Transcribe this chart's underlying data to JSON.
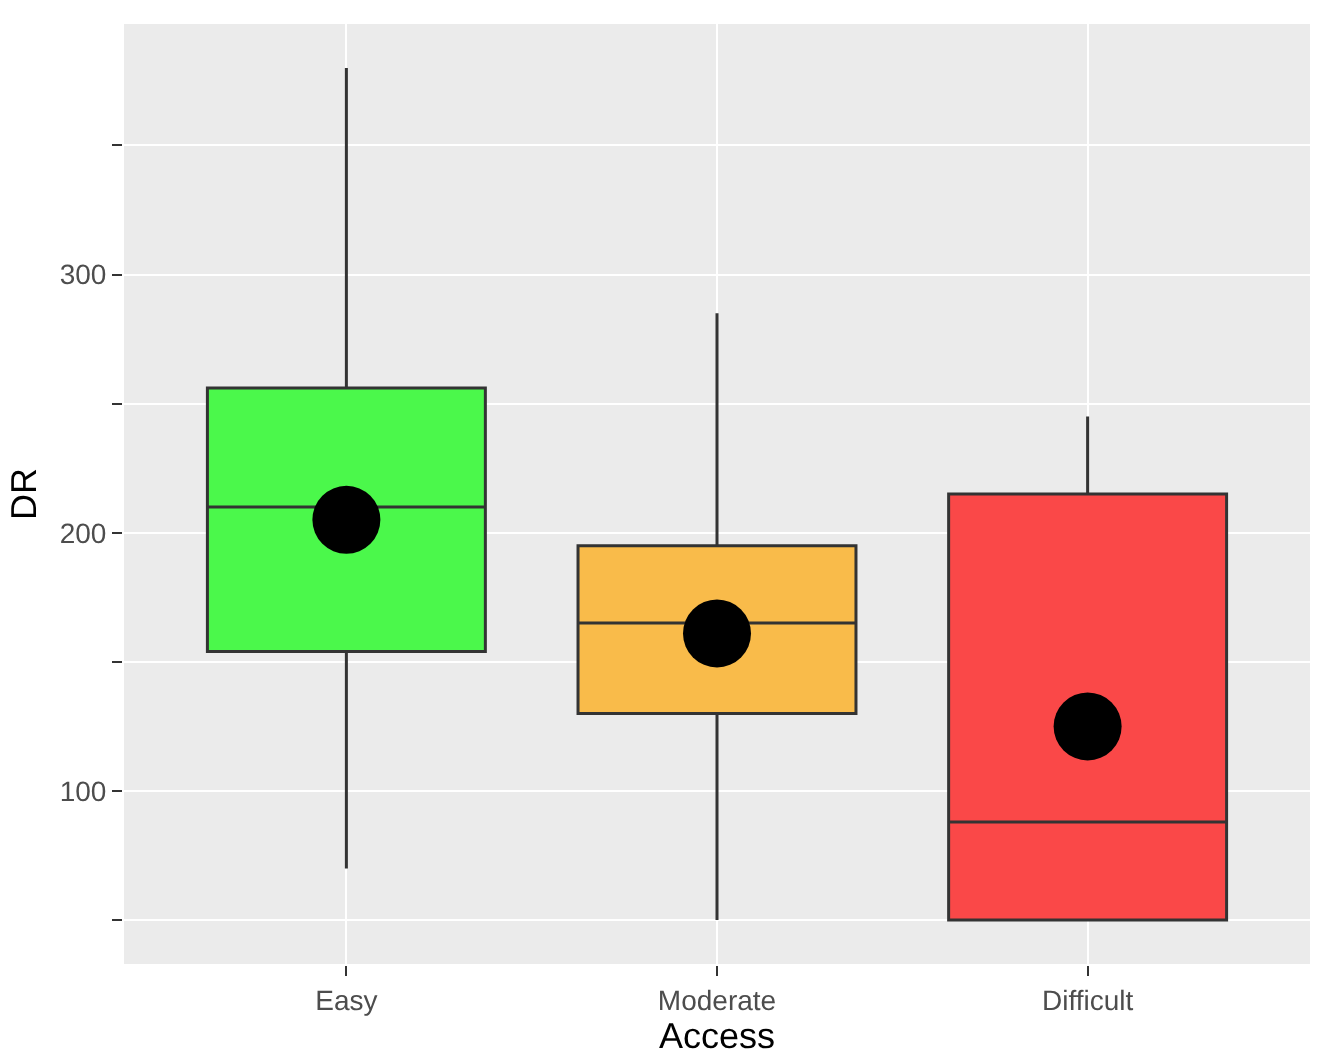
{
  "chart_data": {
    "type": "box",
    "xlabel": "Access",
    "ylabel": "DR",
    "categories": [
      "Easy",
      "Moderate",
      "Difficult"
    ],
    "ylim": [
      33,
      397
    ],
    "yticks": [
      {
        "value": 50,
        "label": null
      },
      100,
      {
        "value": 150,
        "label": null
      },
      200,
      {
        "value": 250,
        "label": null
      },
      300,
      {
        "value": 350,
        "label": null
      }
    ],
    "grid": true,
    "series": [
      {
        "colors": [
          "#4bf84b",
          "#f9bb4a",
          "#fa4848"
        ],
        "boxes": [
          {
            "low": 70,
            "q1": 154,
            "median": 210,
            "q3": 256,
            "high": 380
          },
          {
            "low": 50,
            "q1": 130,
            "median": 165,
            "q3": 195,
            "high": 285
          },
          {
            "low": 50,
            "q1": 50,
            "median": 88,
            "q3": 215,
            "high": 245
          }
        ]
      },
      {
        "type": "scatter",
        "color": "#000000",
        "marker": "circle",
        "x": [
          "Easy",
          "Moderate",
          "Difficult"
        ],
        "values": [
          205,
          161,
          125
        ]
      }
    ]
  }
}
